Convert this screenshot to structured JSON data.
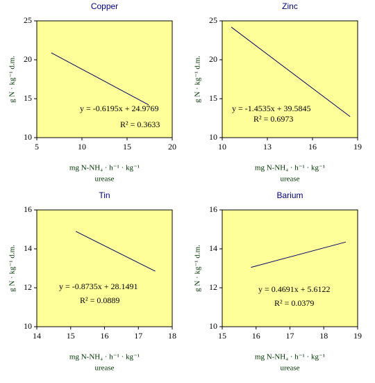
{
  "chart_data": [
    {
      "type": "line",
      "title": "Copper",
      "x_label": "mg N-NH₄ · h⁻¹ · kg⁻¹",
      "x_label_2": "urease",
      "y_label": "g N · kg⁻¹ d.m.",
      "x": [
        6.6,
        17.4
      ],
      "values": [
        20.9,
        14.2
      ],
      "color": "#000066",
      "xlim": [
        5,
        20
      ],
      "xticks": [
        5,
        10,
        15,
        20
      ],
      "ylim": [
        10,
        25
      ],
      "yticks": [
        10,
        15,
        20,
        25
      ],
      "annotations": [
        "y = -0.6195x + 24.9769",
        "R² = 0.3633"
      ]
    },
    {
      "type": "line",
      "title": "Zinc",
      "x_label": "mg N-NH₄ · h⁻¹ · kg⁻¹",
      "x_label_2": "urease",
      "y_label": "g N · kg⁻¹ d.m.",
      "x": [
        10.6,
        18.5
      ],
      "values": [
        24.2,
        12.7
      ],
      "color": "#000066",
      "xlim": [
        10,
        19
      ],
      "xticks": [
        10,
        13,
        16,
        19
      ],
      "ylim": [
        10,
        25
      ],
      "yticks": [
        10,
        15,
        20,
        25
      ],
      "annotations": [
        "y = -1.4535x + 39.5845",
        "R² = 0.6973"
      ]
    },
    {
      "type": "line",
      "title": "Tin",
      "x_label": "mg N-NH₄ · h⁻¹ · kg⁻¹",
      "x_label_2": "urease",
      "y_label": "g N · kg⁻¹ d.m.",
      "x": [
        15.15,
        17.5
      ],
      "values": [
        14.9,
        12.85
      ],
      "color": "#000066",
      "xlim": [
        14,
        18
      ],
      "xticks": [
        14,
        15,
        16,
        17,
        18
      ],
      "ylim": [
        10,
        16
      ],
      "yticks": [
        10,
        12,
        14,
        16
      ],
      "annotations": [
        "y = -0.8735x + 28.1491",
        "R² = 0.0889"
      ]
    },
    {
      "type": "line",
      "title": "Barium",
      "x_label": "mg N-NH₄ · h⁻¹ · kg⁻¹",
      "x_label_2": "urease",
      "y_label": "g N · kg⁻¹ d.m.",
      "x": [
        15.85,
        18.65
      ],
      "values": [
        13.05,
        14.35
      ],
      "color": "#000066",
      "xlim": [
        15,
        19
      ],
      "xticks": [
        15,
        16,
        17,
        18,
        19
      ],
      "ylim": [
        10,
        16
      ],
      "yticks": [
        10,
        12,
        14,
        16
      ],
      "annotations": [
        "y = 0.4691x + 5.6122",
        "R² = 0.0379"
      ]
    }
  ]
}
